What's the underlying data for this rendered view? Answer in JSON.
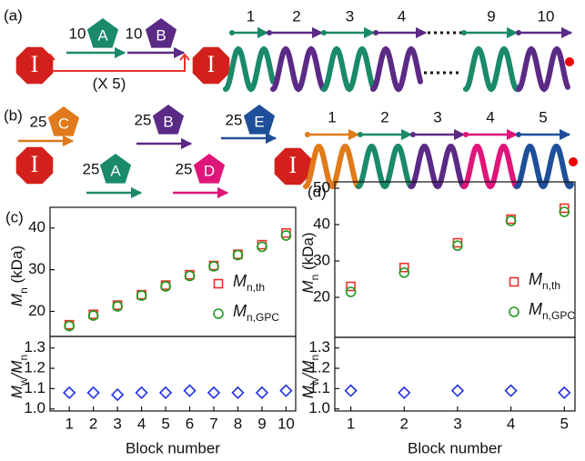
{
  "panel_a": {
    "label": "(a)",
    "initiator": "I",
    "monomers": [
      {
        "count": 10,
        "name": "A"
      },
      {
        "count": 10,
        "name": "B"
      }
    ],
    "repeat": "(X 5)",
    "blocks": [
      "1",
      "2",
      "3",
      "4",
      "9",
      "10"
    ]
  },
  "panel_b": {
    "label": "(b)",
    "initiator": "I",
    "monomers": [
      {
        "count": 25,
        "name": "C"
      },
      {
        "count": 25,
        "name": "B"
      },
      {
        "count": 25,
        "name": "E"
      },
      {
        "count": 25,
        "name": "A"
      },
      {
        "count": 25,
        "name": "D"
      }
    ],
    "blocks": [
      "1",
      "2",
      "3",
      "4",
      "5"
    ]
  },
  "chart_data": [
    {
      "type": "scatter",
      "title": "(c)",
      "ylabel": [
        "M",
        "n",
        " (kDa)"
      ],
      "x": [
        1,
        2,
        3,
        4,
        5,
        6,
        7,
        8,
        9,
        10
      ],
      "xlim": [
        0.2,
        10.4
      ],
      "ylim": [
        14,
        43
      ],
      "yticks": [
        20,
        30,
        40
      ],
      "series": [
        {
          "name": [
            "M",
            "n,th"
          ],
          "color": "#e8312a",
          "marker": "square",
          "values": [
            16.8,
            19.3,
            21.5,
            24,
            26.3,
            28.8,
            31,
            33.7,
            36,
            38.8
          ]
        },
        {
          "name": [
            "M",
            "n,GPC"
          ],
          "color": "#1f9a1f",
          "marker": "circle",
          "values": [
            16.5,
            19,
            21.2,
            23.8,
            26,
            28.5,
            30.8,
            33.5,
            35.5,
            38.2
          ]
        }
      ]
    },
    {
      "type": "scatter",
      "ylabel": [
        "M",
        "w",
        "/M",
        "n"
      ],
      "xlabel": "Block number",
      "x": [
        1,
        2,
        3,
        4,
        5,
        6,
        7,
        8,
        9,
        10
      ],
      "xlim": [
        0.2,
        10.4
      ],
      "xticks": [
        1,
        2,
        3,
        4,
        5,
        6,
        7,
        8,
        9,
        10
      ],
      "ylim": [
        0.99,
        1.33
      ],
      "yticks": [
        {
          "value": 1.0,
          "label": "1.0"
        },
        1.1,
        1.2,
        1.3
      ],
      "series": [
        {
          "color": "#1f2fe0",
          "marker": "diamond",
          "values": [
            1.08,
            1.08,
            1.07,
            1.08,
            1.08,
            1.09,
            1.08,
            1.08,
            1.08,
            1.09
          ]
        }
      ]
    },
    {
      "type": "scatter",
      "title": "(d)",
      "ylabel": [
        "M",
        "n",
        " (kDa)"
      ],
      "x": [
        1,
        2,
        3,
        4,
        5
      ],
      "xlim": [
        0.7,
        5.2
      ],
      "ylim": [
        9,
        50
      ],
      "yticks": [
        20,
        30,
        40,
        50
      ],
      "series": [
        {
          "name": [
            "M",
            "n,th"
          ],
          "color": "#e8312a",
          "marker": "square",
          "values": [
            23,
            28.2,
            35,
            41.5,
            44.5
          ]
        },
        {
          "name": [
            "M",
            "n,GPC"
          ],
          "color": "#1f9a1f",
          "marker": "circle",
          "values": [
            21.5,
            26.8,
            34.2,
            41,
            43.5
          ]
        }
      ]
    },
    {
      "type": "scatter",
      "ylabel": [
        "M",
        "w",
        "/M",
        "n"
      ],
      "xlabel": "Block number",
      "x": [
        1,
        2,
        3,
        4,
        5
      ],
      "xlim": [
        0.7,
        5.2
      ],
      "xticks": [
        1,
        2,
        3,
        4,
        5
      ],
      "ylim": [
        0.99,
        1.33
      ],
      "yticks": [
        {
          "value": 1.0,
          "label": "1.0"
        },
        1.1,
        1.2,
        1.3
      ],
      "series": [
        {
          "color": "#1f2fe0",
          "marker": "diamond",
          "values": [
            1.09,
            1.08,
            1.09,
            1.09,
            1.08
          ]
        }
      ]
    }
  ]
}
